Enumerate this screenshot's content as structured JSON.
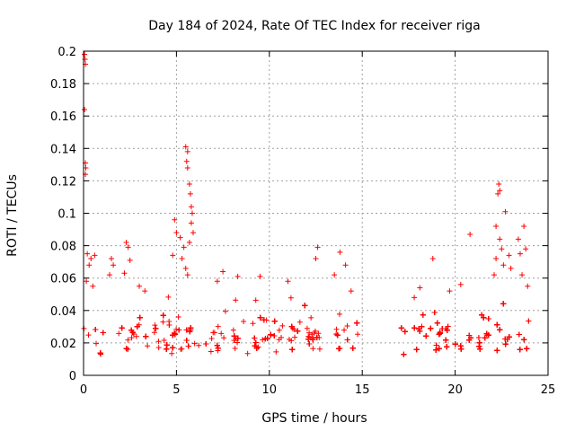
{
  "chart_data": {
    "type": "scatter",
    "title": "Day 184 of 2024, Rate Of TEC Index for receiver riga",
    "xlabel": "GPS time / hours",
    "ylabel": "ROTI / TECUs",
    "xlim": [
      0,
      25
    ],
    "ylim": [
      0,
      0.2
    ],
    "xticks": [
      0,
      5,
      10,
      15,
      20,
      25
    ],
    "xtick_labels": [
      "0",
      "5",
      "10",
      "15",
      "20",
      "25"
    ],
    "yticks": [
      0,
      0.02,
      0.04,
      0.06,
      0.08,
      0.1,
      0.12,
      0.14,
      0.16,
      0.18,
      0.2
    ],
    "ytick_labels": [
      "0",
      "0.02",
      "0.04",
      "0.06",
      "0.08",
      "0.1",
      "0.12",
      "0.14",
      "0.16",
      "0.18",
      "0.2"
    ],
    "grid": true,
    "marker": "plus",
    "color": "#ff0000",
    "data_gap_hours": [
      14.8,
      16.8
    ],
    "series": [
      {
        "name": "ROTI",
        "points": [
          [
            0.05,
            0.198
          ],
          [
            0.08,
            0.195
          ],
          [
            0.1,
            0.192
          ],
          [
            0.05,
            0.164
          ],
          [
            0.1,
            0.131
          ],
          [
            0.12,
            0.128
          ],
          [
            0.1,
            0.124
          ],
          [
            0.2,
            0.075
          ],
          [
            0.4,
            0.072
          ],
          [
            0.6,
            0.074
          ],
          [
            0.3,
            0.068
          ],
          [
            0.15,
            0.058
          ],
          [
            0.5,
            0.055
          ],
          [
            1.5,
            0.072
          ],
          [
            1.6,
            0.068
          ],
          [
            1.4,
            0.062
          ],
          [
            2.3,
            0.082
          ],
          [
            2.4,
            0.079
          ],
          [
            2.5,
            0.071
          ],
          [
            2.2,
            0.063
          ],
          [
            3.0,
            0.055
          ],
          [
            3.3,
            0.052
          ],
          [
            4.8,
            0.074
          ],
          [
            4.9,
            0.096
          ],
          [
            5.0,
            0.088
          ],
          [
            5.2,
            0.085
          ],
          [
            5.4,
            0.079
          ],
          [
            5.5,
            0.141
          ],
          [
            5.6,
            0.138
          ],
          [
            5.55,
            0.132
          ],
          [
            5.6,
            0.128
          ],
          [
            5.7,
            0.118
          ],
          [
            5.75,
            0.112
          ],
          [
            5.8,
            0.104
          ],
          [
            5.85,
            0.1
          ],
          [
            5.8,
            0.094
          ],
          [
            5.9,
            0.088
          ],
          [
            5.7,
            0.082
          ],
          [
            5.3,
            0.072
          ],
          [
            5.5,
            0.066
          ],
          [
            5.6,
            0.062
          ],
          [
            7.5,
            0.064
          ],
          [
            7.2,
            0.058
          ],
          [
            8.3,
            0.061
          ],
          [
            9.5,
            0.061
          ],
          [
            11.0,
            0.058
          ],
          [
            12.6,
            0.079
          ],
          [
            12.5,
            0.072
          ],
          [
            13.5,
            0.062
          ],
          [
            13.8,
            0.076
          ],
          [
            14.1,
            0.068
          ],
          [
            14.4,
            0.052
          ],
          [
            18.8,
            0.072
          ],
          [
            20.8,
            0.087
          ],
          [
            22.1,
            0.062
          ],
          [
            22.2,
            0.072
          ],
          [
            22.3,
            0.112
          ],
          [
            22.35,
            0.118
          ],
          [
            22.4,
            0.114
          ],
          [
            22.2,
            0.092
          ],
          [
            22.4,
            0.084
          ],
          [
            22.5,
            0.078
          ],
          [
            22.6,
            0.068
          ],
          [
            22.7,
            0.101
          ],
          [
            22.9,
            0.074
          ],
          [
            23.0,
            0.066
          ],
          [
            23.4,
            0.084
          ],
          [
            23.5,
            0.075
          ],
          [
            23.7,
            0.092
          ],
          [
            23.8,
            0.078
          ],
          [
            23.6,
            0.062
          ],
          [
            23.9,
            0.055
          ],
          [
            20.3,
            0.056
          ],
          [
            19.7,
            0.052
          ],
          [
            17.8,
            0.048
          ],
          [
            18.1,
            0.054
          ]
        ]
      }
    ],
    "baseline_segments": [
      {
        "x_start": 0.0,
        "x_end": 14.8,
        "y_min": 0.012,
        "y_max": 0.038
      },
      {
        "x_start": 16.8,
        "x_end": 24.0,
        "y_min": 0.011,
        "y_max": 0.04
      }
    ]
  }
}
